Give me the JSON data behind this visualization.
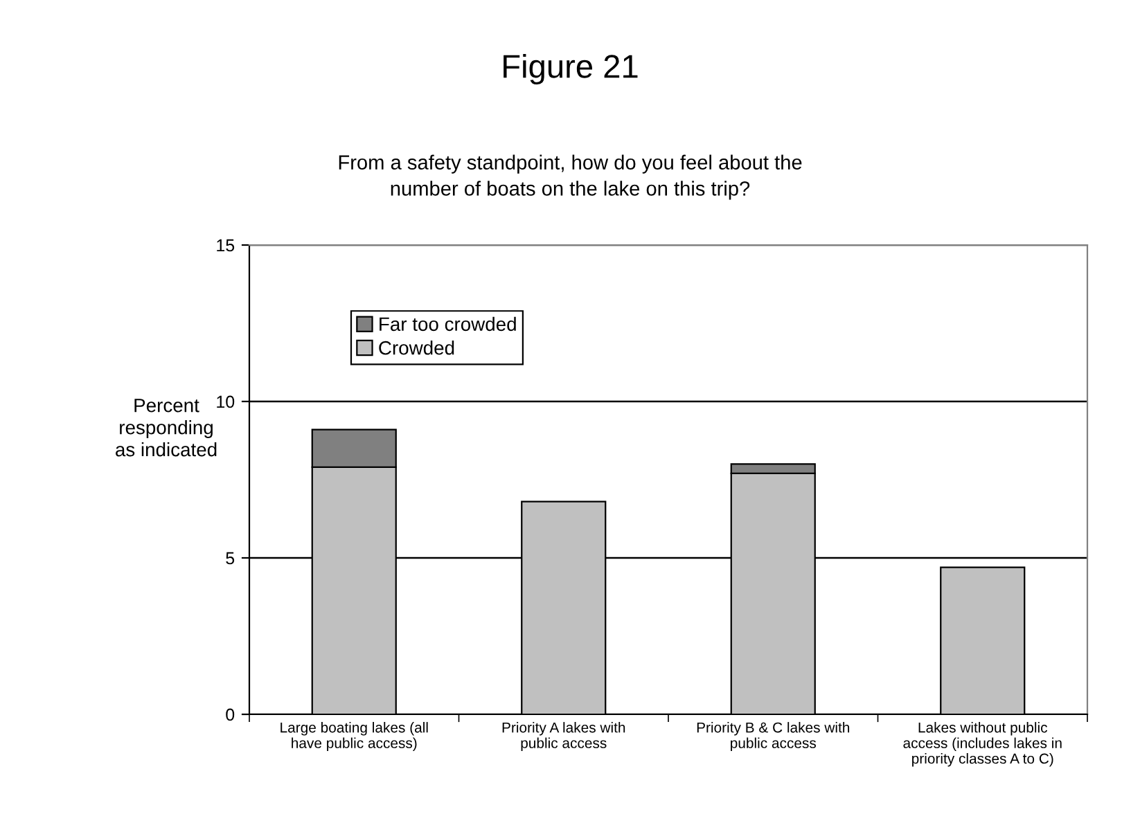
{
  "chart_data": {
    "type": "bar",
    "title": "Figure 21",
    "subtitle": "From a safety standpoint, how do you feel about the\nnumber of boats on the lake on this trip?",
    "ylabel": "Percent\nresponding\nas indicated",
    "categories": [
      "Large boating lakes (all\nhave public access)",
      "Priority A lakes with\npublic access",
      "Priority B & C lakes with\npublic access",
      "Lakes without public\naccess (includes lakes in\npriority classes A to C)"
    ],
    "stacked": true,
    "series": [
      {
        "name": "Crowded",
        "color": "#c0c0c0",
        "values": [
          7.9,
          6.8,
          7.7,
          4.7
        ]
      },
      {
        "name": "Far too crowded",
        "color": "#808080",
        "values": [
          1.2,
          null,
          0.3,
          null
        ]
      }
    ],
    "ylim": [
      0,
      15
    ],
    "yticks": [
      0,
      5,
      10,
      15
    ],
    "grid": "y",
    "legend": "top left"
  }
}
